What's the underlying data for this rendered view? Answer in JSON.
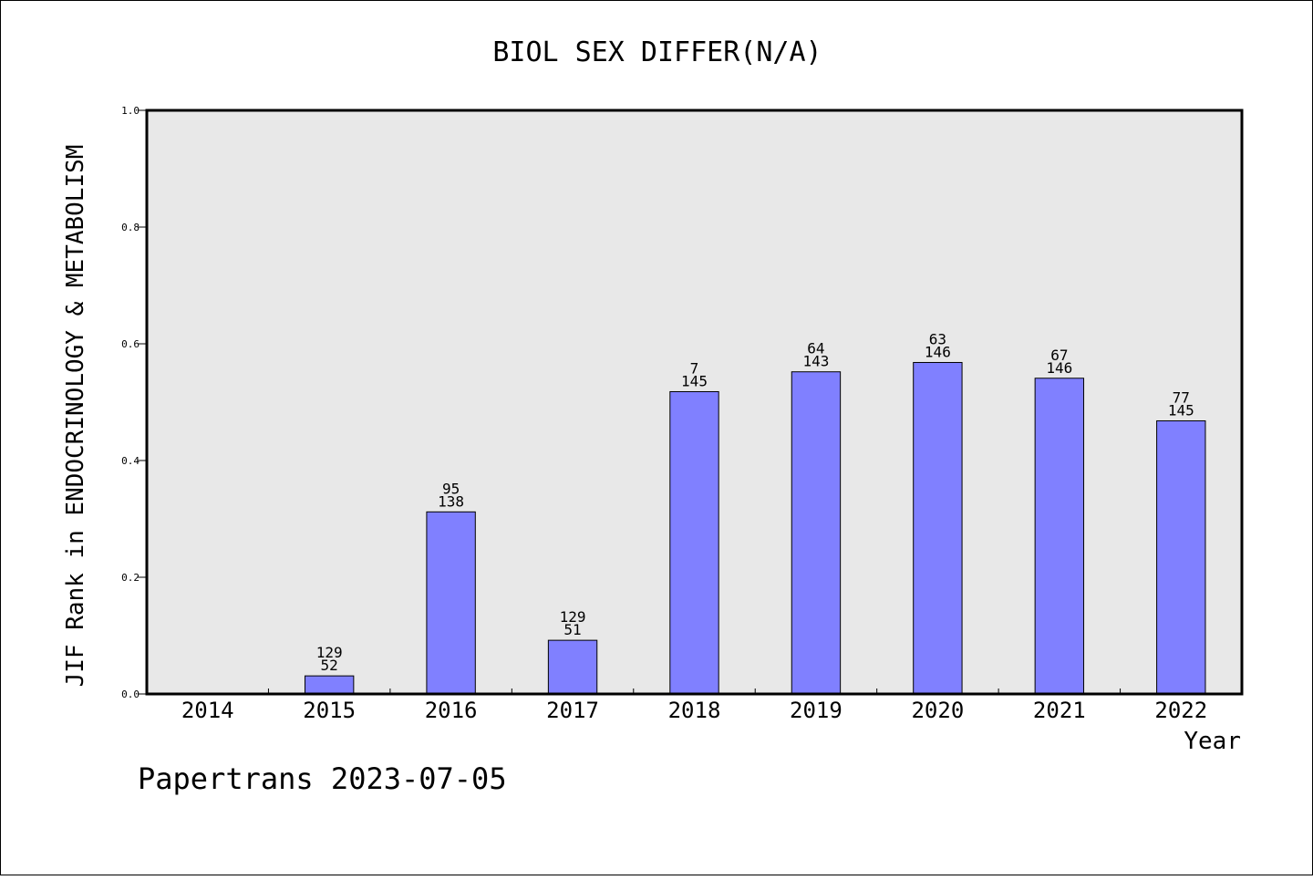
{
  "chart_data": {
    "type": "bar",
    "title": "BIOL SEX DIFFER(N/A)",
    "xlabel": "Year",
    "ylabel": "JIF Rank in ENDOCRINOLOGY & METABOLISM",
    "ylim": [
      0,
      1.0
    ],
    "yticks": [
      "0.0",
      "0.2",
      "0.4",
      "0.6",
      "0.8",
      "1.0"
    ],
    "categories": [
      "2014",
      "2015",
      "2016",
      "2017",
      "2018",
      "2019",
      "2020",
      "2021",
      "2022"
    ],
    "values": [
      null,
      0.031,
      0.312,
      0.092,
      0.518,
      0.552,
      0.568,
      0.541,
      0.468
    ],
    "label_top": [
      "",
      "129",
      "95",
      "129",
      "7",
      "64",
      "63",
      "67",
      "77"
    ],
    "label_bottom": [
      "",
      "52",
      "138",
      "51",
      "145",
      "143",
      "146",
      "146",
      "145"
    ],
    "grid": false,
    "colors": {
      "bar": "#8080ff",
      "plot_bg": "#e8e8e8"
    }
  },
  "footer": "Papertrans 2023-07-05"
}
